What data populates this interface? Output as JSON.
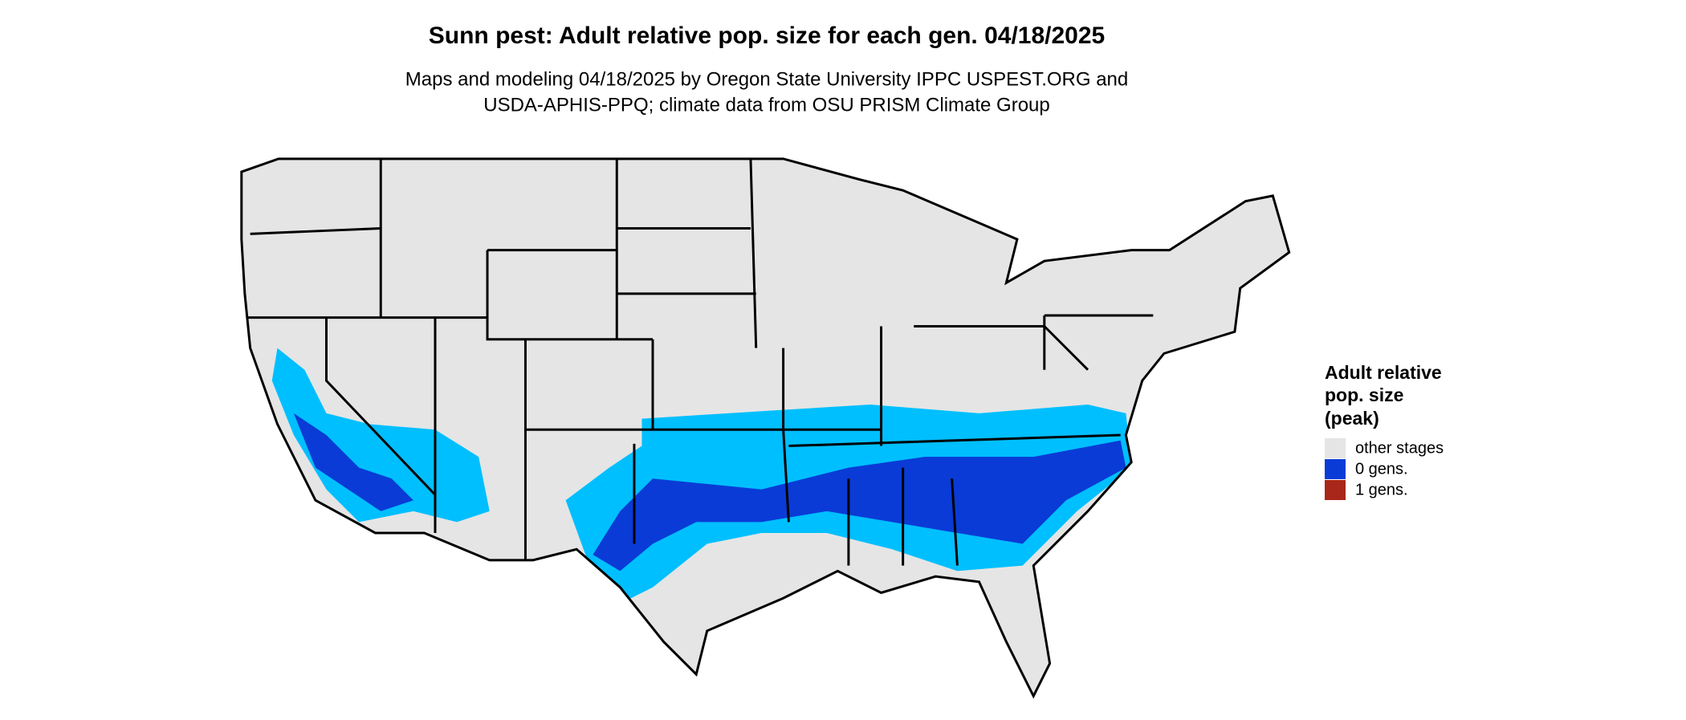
{
  "map": {
    "title": "Sunn pest: Adult relative pop. size for each gen. 04/18/2025",
    "subtitle": [
      "Maps and modeling 04/18/2025 by Oregon State University IPPC USPEST.ORG and",
      "USDA-APHIS-PPQ; climate data from OSU PRISM Climate Group"
    ],
    "legend": {
      "title": [
        "Adult relative",
        "pop. size",
        "(peak)"
      ],
      "items": [
        {
          "label": "other stages",
          "color": "#e5e5e5"
        },
        {
          "label": "0 gens.",
          "color": "#0a3bd6"
        },
        {
          "label": "1 gens.",
          "color": "#a8271a"
        }
      ]
    }
  }
}
